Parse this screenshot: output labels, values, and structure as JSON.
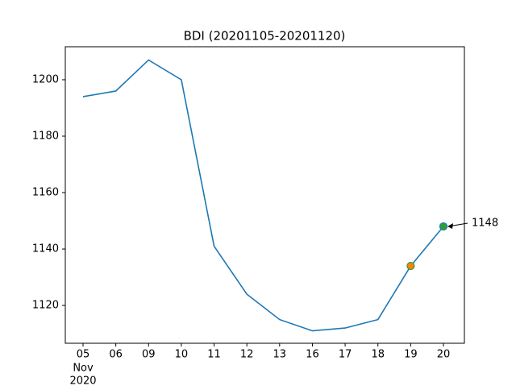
{
  "chart_data": {
    "type": "line",
    "title": "BDI (20201105-20201120)",
    "categories": [
      "05",
      "06",
      "09",
      "10",
      "11",
      "12",
      "13",
      "16",
      "17",
      "18",
      "19",
      "20"
    ],
    "x_sublabel": [
      "Nov",
      "2020"
    ],
    "series": [
      {
        "color": "#1f77b4",
        "values": [
          1194,
          1196,
          1207,
          1200,
          1141,
          1124,
          1115,
          1111,
          1112,
          1115,
          1134,
          1148
        ]
      }
    ],
    "markers": [
      {
        "index": 10,
        "fill": "#ff7f0e",
        "edge": "#2ca02c"
      },
      {
        "index": 11,
        "fill": "#2ca02c",
        "edge": "#1f77b4"
      }
    ],
    "annotations": [
      {
        "index": 11,
        "label": "1148"
      }
    ],
    "ylim": [
      1106.6,
      1211.7
    ],
    "yticks": [
      1120,
      1140,
      1160,
      1180,
      1200
    ]
  }
}
